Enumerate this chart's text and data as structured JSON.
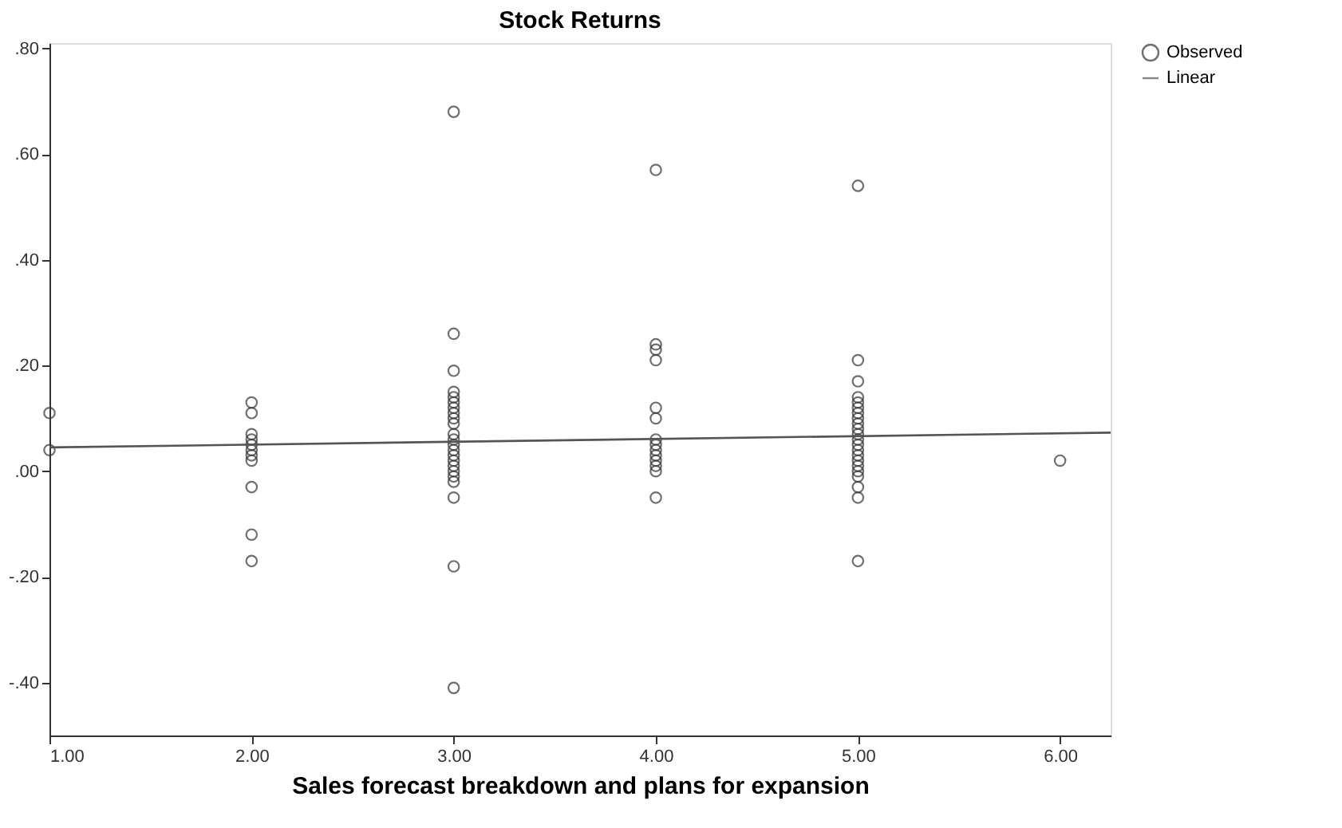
{
  "chart_data": {
    "type": "scatter",
    "title": "Stock Returns",
    "xlabel": "Sales forecast breakdown and plans for expansion",
    "xlim": [
      1,
      6.25
    ],
    "ylim": [
      -0.5,
      0.81
    ],
    "xticks": [
      {
        "value": 1,
        "label": "1.00"
      },
      {
        "value": 2,
        "label": "2.00"
      },
      {
        "value": 3,
        "label": "3.00"
      },
      {
        "value": 4,
        "label": "4.00"
      },
      {
        "value": 5,
        "label": "5.00"
      },
      {
        "value": 6,
        "label": "6.00"
      }
    ],
    "yticks": [
      {
        "value": -0.4,
        "label": "-.40"
      },
      {
        "value": -0.2,
        "label": "-.20"
      },
      {
        "value": 0,
        "label": ".00"
      },
      {
        "value": 0.2,
        "label": ".20"
      },
      {
        "value": 0.4,
        "label": ".40"
      },
      {
        "value": 0.6,
        "label": ".60"
      },
      {
        "value": 0.8,
        "label": ".80"
      }
    ],
    "grid": false,
    "legend": "top right",
    "series": [
      {
        "name": "Observed",
        "marker": "circle",
        "color": "#333333",
        "x": [
          1,
          1,
          2,
          2,
          2,
          2,
          2,
          2,
          2,
          2,
          2,
          2,
          2,
          3,
          3,
          3,
          3,
          3,
          3,
          3,
          3,
          3,
          3,
          3,
          3,
          3,
          3,
          3,
          3,
          3,
          3,
          3,
          3,
          3,
          3,
          3,
          4,
          4,
          4,
          4,
          4,
          4,
          4,
          4,
          4,
          4,
          4,
          4,
          4,
          4,
          5,
          5,
          5,
          5,
          5,
          5,
          5,
          5,
          5,
          5,
          5,
          5,
          5,
          5,
          5,
          5,
          5,
          5,
          5,
          5,
          5,
          5,
          6
        ],
        "values": [
          0.11,
          0.04,
          0.13,
          0.11,
          0.07,
          0.06,
          0.05,
          0.04,
          0.03,
          0.02,
          -0.03,
          -0.12,
          -0.17,
          0.68,
          0.26,
          0.19,
          0.15,
          0.14,
          0.13,
          0.12,
          0.11,
          0.1,
          0.09,
          0.07,
          0.06,
          0.05,
          0.04,
          0.03,
          0.02,
          0.01,
          0.0,
          -0.01,
          -0.02,
          -0.05,
          -0.18,
          -0.41,
          0.57,
          0.24,
          0.23,
          0.21,
          0.12,
          0.1,
          0.06,
          0.05,
          0.04,
          0.03,
          0.02,
          0.01,
          0.0,
          -0.05,
          0.54,
          0.21,
          0.17,
          0.14,
          0.13,
          0.12,
          0.11,
          0.1,
          0.09,
          0.08,
          0.07,
          0.06,
          0.05,
          0.04,
          0.03,
          0.02,
          0.01,
          0.0,
          -0.01,
          -0.03,
          -0.05,
          -0.17,
          0.02
        ]
      },
      {
        "name": "Linear",
        "type": "line",
        "marker": "none",
        "color": "#555555",
        "x": [
          1,
          6.25
        ],
        "values": [
          0.045,
          0.073
        ]
      }
    ]
  }
}
